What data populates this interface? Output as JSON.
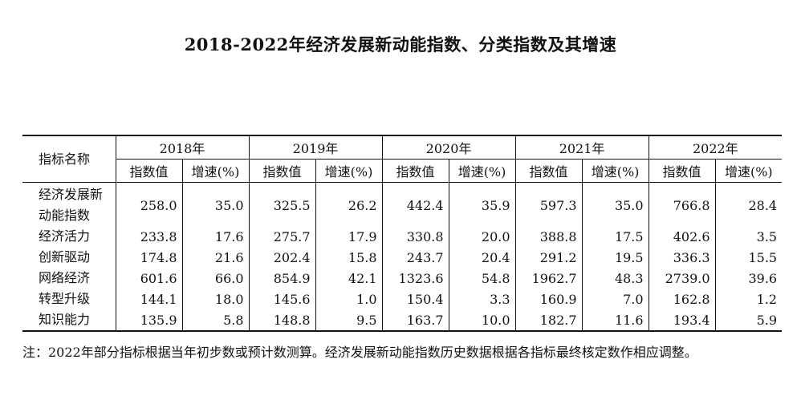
{
  "title": "2018-2022年经济发展新动能指数、分类指数及其增速",
  "table": {
    "name_header": "指标名称",
    "years": [
      "2018年",
      "2019年",
      "2020年",
      "2021年",
      "2022年"
    ],
    "sub_headers": {
      "index": "指数值",
      "growth": "增速(%)"
    },
    "rows": [
      {
        "name_line1": "经济发展新",
        "name_line2": "动能指数",
        "values": [
          "258.0",
          "35.0",
          "325.5",
          "26.2",
          "442.4",
          "35.9",
          "597.3",
          "35.0",
          "766.8",
          "28.4"
        ]
      },
      {
        "name_line1": "经济活力",
        "name_line2": "",
        "values": [
          "233.8",
          "17.6",
          "275.7",
          "17.9",
          "330.8",
          "20.0",
          "388.8",
          "17.5",
          "402.6",
          "3.5"
        ]
      },
      {
        "name_line1": "创新驱动",
        "name_line2": "",
        "values": [
          "174.8",
          "21.6",
          "202.4",
          "15.8",
          "243.7",
          "20.4",
          "291.2",
          "19.5",
          "336.3",
          "15.5"
        ]
      },
      {
        "name_line1": "网络经济",
        "name_line2": "",
        "values": [
          "601.6",
          "66.0",
          "854.9",
          "42.1",
          "1323.6",
          "54.8",
          "1962.7",
          "48.3",
          "2739.0",
          "39.6"
        ]
      },
      {
        "name_line1": "转型升级",
        "name_line2": "",
        "values": [
          "144.1",
          "18.0",
          "145.6",
          "1.0",
          "150.4",
          "3.3",
          "160.9",
          "7.0",
          "162.8",
          "1.2"
        ]
      },
      {
        "name_line1": "知识能力",
        "name_line2": "",
        "values": [
          "135.9",
          "5.8",
          "148.8",
          "9.5",
          "163.7",
          "10.0",
          "182.7",
          "11.6",
          "193.4",
          "5.9"
        ]
      }
    ]
  },
  "note": "注：2022年部分指标根据当年初步数或预计数测算。经济发展新动能指数历史数据根据各指标最终核定数作相应调整。"
}
